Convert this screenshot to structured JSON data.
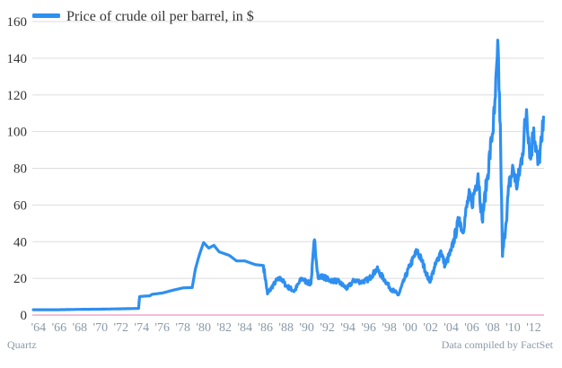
{
  "colors": {
    "series": "#2e8ff0",
    "baseline": "#f4a6c8",
    "grid": "#dddddd",
    "tick_text": "#333333",
    "x_tick_text": "#8a9aa8",
    "footer_text": "#8a9aa8"
  },
  "footer": {
    "source_left": "Quartz",
    "source_right": "Data compiled by FactSet"
  },
  "chart_data": {
    "type": "line",
    "title": "",
    "xlabel": "",
    "ylabel": "",
    "xlim": [
      1963.4,
      2013.0
    ],
    "ylim": [
      0,
      160
    ],
    "grid": true,
    "legend_position": "top-left",
    "yticks": [
      0,
      20,
      40,
      60,
      80,
      100,
      120,
      140,
      160
    ],
    "xticks": [
      {
        "value": 1964,
        "label": "'64"
      },
      {
        "value": 1966,
        "label": "'66"
      },
      {
        "value": 1968,
        "label": "'68"
      },
      {
        "value": 1970,
        "label": "'70"
      },
      {
        "value": 1972,
        "label": "'72"
      },
      {
        "value": 1974,
        "label": "'74"
      },
      {
        "value": 1976,
        "label": "'76"
      },
      {
        "value": 1978,
        "label": "'78"
      },
      {
        "value": 1980,
        "label": "'80"
      },
      {
        "value": 1982,
        "label": "'82"
      },
      {
        "value": 1984,
        "label": "'84"
      },
      {
        "value": 1986,
        "label": "'86"
      },
      {
        "value": 1988,
        "label": "'88"
      },
      {
        "value": 1990,
        "label": "'90"
      },
      {
        "value": 1992,
        "label": "'92"
      },
      {
        "value": 1994,
        "label": "'94"
      },
      {
        "value": 1996,
        "label": "'96"
      },
      {
        "value": 1998,
        "label": "'98"
      },
      {
        "value": 2000,
        "label": "'00"
      },
      {
        "value": 2002,
        "label": "'02"
      },
      {
        "value": 2004,
        "label": "'04"
      },
      {
        "value": 2006,
        "label": "'06"
      },
      {
        "value": 2008,
        "label": "'08"
      },
      {
        "value": 2010,
        "label": "'10"
      },
      {
        "value": 2012,
        "label": "'12"
      }
    ],
    "series": [
      {
        "name": "Price of crude oil per barrel, in $",
        "points": [
          [
            1963.5,
            2.9
          ],
          [
            1966.0,
            2.9
          ],
          [
            1968.0,
            3.1
          ],
          [
            1970.0,
            3.2
          ],
          [
            1972.0,
            3.4
          ],
          [
            1973.7,
            3.6
          ],
          [
            1973.8,
            10.1
          ],
          [
            1974.8,
            10.5
          ],
          [
            1975.0,
            11.3
          ],
          [
            1976.0,
            12.0
          ],
          [
            1977.0,
            13.5
          ],
          [
            1978.0,
            14.8
          ],
          [
            1978.9,
            15.0
          ],
          [
            1979.2,
            25.0
          ],
          [
            1979.6,
            33.0
          ],
          [
            1980.0,
            39.5
          ],
          [
            1980.5,
            36.5
          ],
          [
            1981.0,
            38.0
          ],
          [
            1981.5,
            34.5
          ],
          [
            1982.5,
            32.5
          ],
          [
            1983.2,
            29.5
          ],
          [
            1984.0,
            29.5
          ],
          [
            1985.0,
            27.5
          ],
          [
            1985.8,
            27.0
          ],
          [
            1986.2,
            11.5
          ],
          [
            1986.6,
            15.0
          ],
          [
            1987.0,
            18.5
          ],
          [
            1987.5,
            20.0
          ],
          [
            1988.0,
            16.0
          ],
          [
            1988.8,
            13.0
          ],
          [
            1989.5,
            20.0
          ],
          [
            1990.0,
            18.0
          ],
          [
            1990.4,
            17.0
          ],
          [
            1990.75,
            41.0
          ],
          [
            1991.1,
            20.5
          ],
          [
            1991.6,
            21.0
          ],
          [
            1992.2,
            19.0
          ],
          [
            1993.0,
            18.5
          ],
          [
            1993.9,
            14.5
          ],
          [
            1994.6,
            19.0
          ],
          [
            1995.3,
            18.0
          ],
          [
            1996.0,
            19.5
          ],
          [
            1996.8,
            25.0
          ],
          [
            1997.5,
            19.5
          ],
          [
            1998.2,
            14.0
          ],
          [
            1998.9,
            11.0
          ],
          [
            1999.5,
            20.0
          ],
          [
            2000.0,
            27.0
          ],
          [
            2000.7,
            35.0
          ],
          [
            2001.2,
            29.0
          ],
          [
            2001.9,
            18.0
          ],
          [
            2002.4,
            26.0
          ],
          [
            2003.0,
            35.0
          ],
          [
            2003.4,
            27.0
          ],
          [
            2004.0,
            35.0
          ],
          [
            2004.8,
            53.0
          ],
          [
            2005.1,
            45.0
          ],
          [
            2005.7,
            65.0
          ],
          [
            2006.0,
            60.0
          ],
          [
            2006.6,
            77.0
          ],
          [
            2007.0,
            52.0
          ],
          [
            2007.5,
            75.0
          ],
          [
            2007.9,
            95.0
          ],
          [
            2008.2,
            110.0
          ],
          [
            2008.55,
            145.0
          ],
          [
            2008.8,
            90.0
          ],
          [
            2008.97,
            32.0
          ],
          [
            2009.3,
            50.0
          ],
          [
            2009.6,
            70.0
          ],
          [
            2010.0,
            80.0
          ],
          [
            2010.4,
            70.0
          ],
          [
            2010.9,
            88.0
          ],
          [
            2011.3,
            112.0
          ],
          [
            2011.7,
            85.0
          ],
          [
            2012.0,
            102.0
          ],
          [
            2012.4,
            82.0
          ],
          [
            2012.8,
            95.0
          ],
          [
            2012.95,
            108.0
          ]
        ]
      }
    ]
  }
}
